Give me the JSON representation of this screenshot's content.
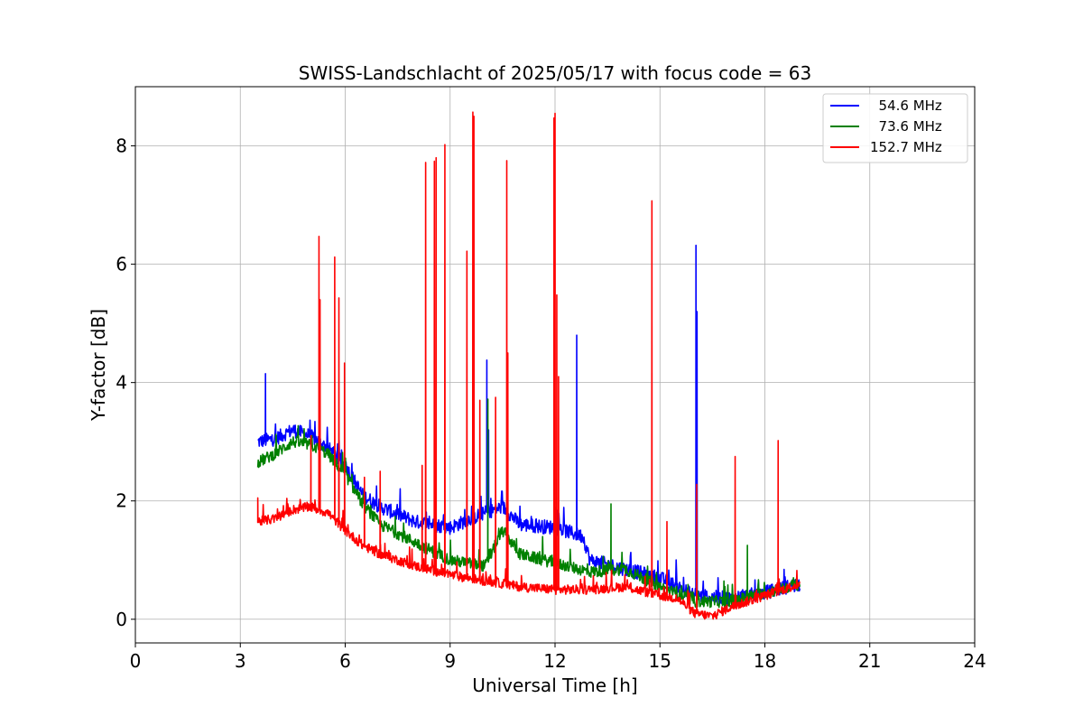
{
  "chart_data": {
    "type": "line",
    "title": "SWISS-Landschlacht of 2025/05/17 with focus code = 63",
    "xlabel": "Universal Time [h]",
    "ylabel": "Y-factor [dB]",
    "xlim": [
      0,
      24
    ],
    "ylim": [
      -0.4,
      9.0
    ],
    "xticks": [
      0,
      3,
      6,
      9,
      12,
      15,
      18,
      21,
      24
    ],
    "xtick_labels": [
      "0",
      "3",
      "6",
      "9",
      "12",
      "15",
      "18",
      "21",
      "24"
    ],
    "yticks": [
      0,
      2,
      4,
      6,
      8
    ],
    "ytick_labels": [
      "0",
      "2",
      "4",
      "6",
      "8"
    ],
    "grid": true,
    "legend_position": "top-right",
    "series": [
      {
        "name": "  54.6 MHz",
        "color": "#0000ff",
        "noise": 0.12,
        "baseline": [
          [
            3.5,
            3.0
          ],
          [
            4.0,
            3.05
          ],
          [
            4.5,
            3.2
          ],
          [
            5.0,
            3.1
          ],
          [
            5.5,
            2.9
          ],
          [
            6.0,
            2.6
          ],
          [
            6.5,
            2.1
          ],
          [
            7.0,
            1.9
          ],
          [
            8.0,
            1.65
          ],
          [
            9.0,
            1.55
          ],
          [
            10.0,
            1.8
          ],
          [
            10.5,
            1.9
          ],
          [
            11.0,
            1.6
          ],
          [
            12.0,
            1.55
          ],
          [
            12.8,
            1.4
          ],
          [
            13.0,
            1.0
          ],
          [
            14.0,
            0.85
          ],
          [
            15.0,
            0.7
          ],
          [
            16.0,
            0.4
          ],
          [
            17.0,
            0.35
          ],
          [
            18.0,
            0.45
          ],
          [
            19.0,
            0.6
          ]
        ],
        "spikes": [
          [
            3.72,
            4.15
          ],
          [
            10.05,
            4.38
          ],
          [
            10.1,
            3.2
          ],
          [
            12.62,
            4.8
          ],
          [
            16.03,
            6.32
          ],
          [
            16.06,
            5.2
          ]
        ]
      },
      {
        "name": "  73.6 MHz",
        "color": "#008000",
        "noise": 0.1,
        "baseline": [
          [
            3.5,
            2.65
          ],
          [
            4.0,
            2.8
          ],
          [
            4.5,
            3.0
          ],
          [
            5.0,
            2.95
          ],
          [
            5.5,
            2.8
          ],
          [
            6.0,
            2.45
          ],
          [
            6.5,
            1.95
          ],
          [
            7.0,
            1.6
          ],
          [
            8.0,
            1.3
          ],
          [
            9.0,
            1.0
          ],
          [
            10.0,
            0.9
          ],
          [
            10.5,
            1.5
          ],
          [
            11.0,
            1.1
          ],
          [
            12.0,
            0.95
          ],
          [
            13.0,
            0.8
          ],
          [
            14.0,
            0.85
          ],
          [
            15.0,
            0.55
          ],
          [
            16.0,
            0.3
          ],
          [
            17.0,
            0.3
          ],
          [
            18.0,
            0.45
          ],
          [
            19.0,
            0.6
          ]
        ],
        "spikes": [
          [
            10.08,
            3.72
          ],
          [
            13.6,
            1.95
          ],
          [
            17.5,
            1.25
          ]
        ]
      },
      {
        "name": "152.7 MHz",
        "color": "#ff0000",
        "noise": 0.08,
        "baseline": [
          [
            3.5,
            1.65
          ],
          [
            4.0,
            1.7
          ],
          [
            4.5,
            1.85
          ],
          [
            5.0,
            1.9
          ],
          [
            5.5,
            1.8
          ],
          [
            6.0,
            1.5
          ],
          [
            6.5,
            1.25
          ],
          [
            7.0,
            1.1
          ],
          [
            8.0,
            0.9
          ],
          [
            9.0,
            0.75
          ],
          [
            10.0,
            0.65
          ],
          [
            11.0,
            0.55
          ],
          [
            12.0,
            0.5
          ],
          [
            13.0,
            0.5
          ],
          [
            14.0,
            0.55
          ],
          [
            15.0,
            0.4
          ],
          [
            15.5,
            0.35
          ],
          [
            16.0,
            0.1
          ],
          [
            16.5,
            0.05
          ],
          [
            17.0,
            0.2
          ],
          [
            18.0,
            0.4
          ],
          [
            19.0,
            0.6
          ]
        ],
        "spikes": [
          [
            3.5,
            2.05
          ],
          [
            5.02,
            3.1
          ],
          [
            5.25,
            6.47
          ],
          [
            5.28,
            5.4
          ],
          [
            5.7,
            6.12
          ],
          [
            5.82,
            5.43
          ],
          [
            5.98,
            4.33
          ],
          [
            6.55,
            2.4
          ],
          [
            7.0,
            2.5
          ],
          [
            8.2,
            2.6
          ],
          [
            8.3,
            7.72
          ],
          [
            8.55,
            7.74
          ],
          [
            8.6,
            7.8
          ],
          [
            8.85,
            8.02
          ],
          [
            9.48,
            6.22
          ],
          [
            9.65,
            8.57
          ],
          [
            9.68,
            8.5
          ],
          [
            9.85,
            3.7
          ],
          [
            10.3,
            3.75
          ],
          [
            10.62,
            7.75
          ],
          [
            10.65,
            4.5
          ],
          [
            11.97,
            8.47
          ],
          [
            12.0,
            8.55
          ],
          [
            12.05,
            5.48
          ],
          [
            12.1,
            4.1
          ],
          [
            14.77,
            7.07
          ],
          [
            15.2,
            1.65
          ],
          [
            16.05,
            2.28
          ],
          [
            17.15,
            2.75
          ],
          [
            18.38,
            3.02
          ]
        ]
      }
    ]
  }
}
